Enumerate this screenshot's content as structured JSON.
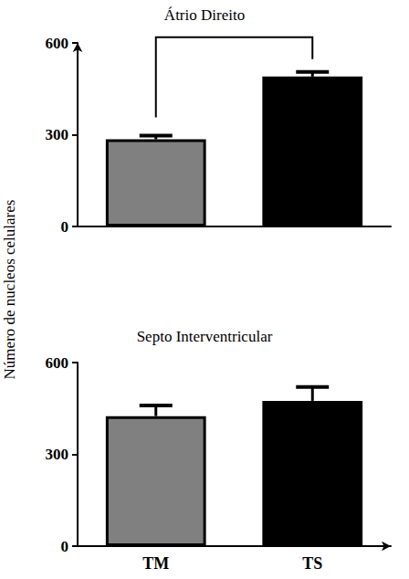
{
  "chart_data": [
    {
      "type": "bar",
      "title": "Átrio Direito",
      "categories": [
        "TM",
        "TS"
      ],
      "values": [
        285,
        490
      ],
      "errors": [
        12,
        15
      ],
      "colors": [
        "#808080",
        "#000000"
      ],
      "ylabel": "Número de nucleos celulares",
      "ylim": [
        0,
        600
      ],
      "yticks": [
        0,
        300,
        600
      ],
      "grid": false,
      "tick_labels": "y",
      "brackets": [
        [
          "TM",
          "TS"
        ]
      ]
    },
    {
      "type": "bar",
      "title": "Septo Interventricular",
      "categories": [
        "TM",
        "TS"
      ],
      "values": [
        425,
        475
      ],
      "errors": [
        35,
        45
      ],
      "colors": [
        "#808080",
        "#000000"
      ],
      "ylim": [
        0,
        600
      ],
      "yticks": [
        0,
        300,
        600
      ],
      "grid": false
    }
  ]
}
